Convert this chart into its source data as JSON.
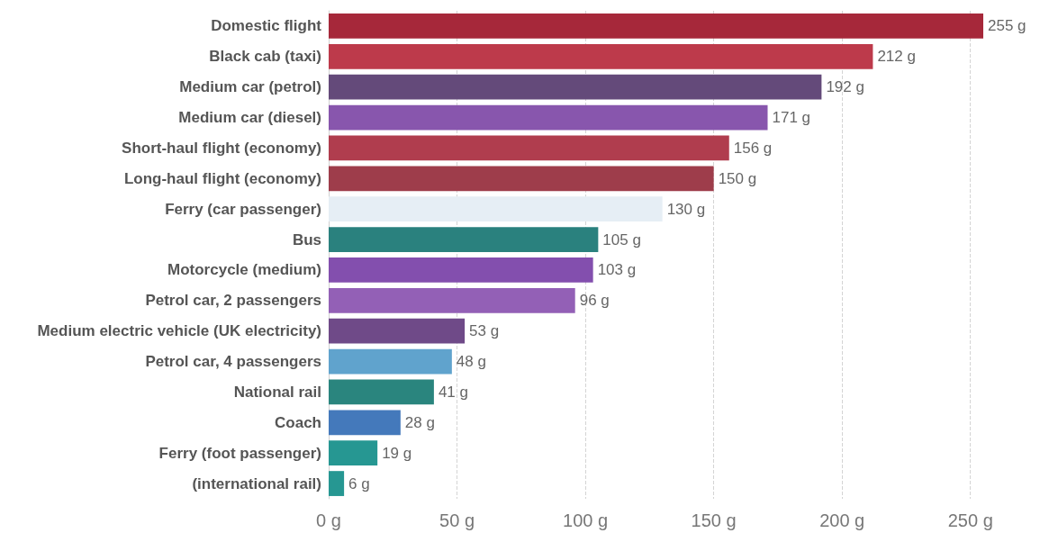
{
  "chart_data": {
    "type": "bar",
    "orientation": "horizontal",
    "categories": [
      "Domestic flight",
      "Black cab (taxi)",
      "Medium car (petrol)",
      "Medium car (diesel)",
      "Short-haul flight (economy)",
      "Long-haul flight (economy)",
      "Ferry (car passenger)",
      "Bus",
      "Motorcycle (medium)",
      "Petrol car, 2 passengers",
      "Medium electric vehicle (UK electricity)",
      "Petrol car, 4 passengers",
      "National rail",
      "Coach",
      "Ferry (foot passenger)",
      "(international rail)"
    ],
    "values": [
      255,
      212,
      192,
      171,
      156,
      150,
      130,
      105,
      103,
      96,
      53,
      48,
      41,
      28,
      19,
      6
    ],
    "colors": [
      "#a6283a",
      "#bd3a4b",
      "#644a7a",
      "#8856ad",
      "#b03d4e",
      "#9e3d4b",
      "#e6eef5",
      "#2a817e",
      "#834fae",
      "#9360b6",
      "#6f4a88",
      "#60a3cd",
      "#2a857e",
      "#4479bb",
      "#269792",
      "#269792"
    ],
    "value_labels": [
      "255 g",
      "212 g",
      "192 g",
      "171 g",
      "156 g",
      "150 g",
      "130 g",
      "105 g",
      "103 g",
      "96 g",
      "53 g",
      "48 g",
      "41 g",
      "28 g",
      "19 g",
      "6 g"
    ],
    "xlim": [
      0,
      255
    ],
    "xticks": [
      {
        "value": 0,
        "label": "0 g"
      },
      {
        "value": 50,
        "label": "50 g"
      },
      {
        "value": 100,
        "label": "100 g"
      },
      {
        "value": 150,
        "label": "150 g"
      },
      {
        "value": 200,
        "label": "200 g"
      },
      {
        "value": 250,
        "label": "250 g"
      }
    ],
    "grid": "x"
  }
}
